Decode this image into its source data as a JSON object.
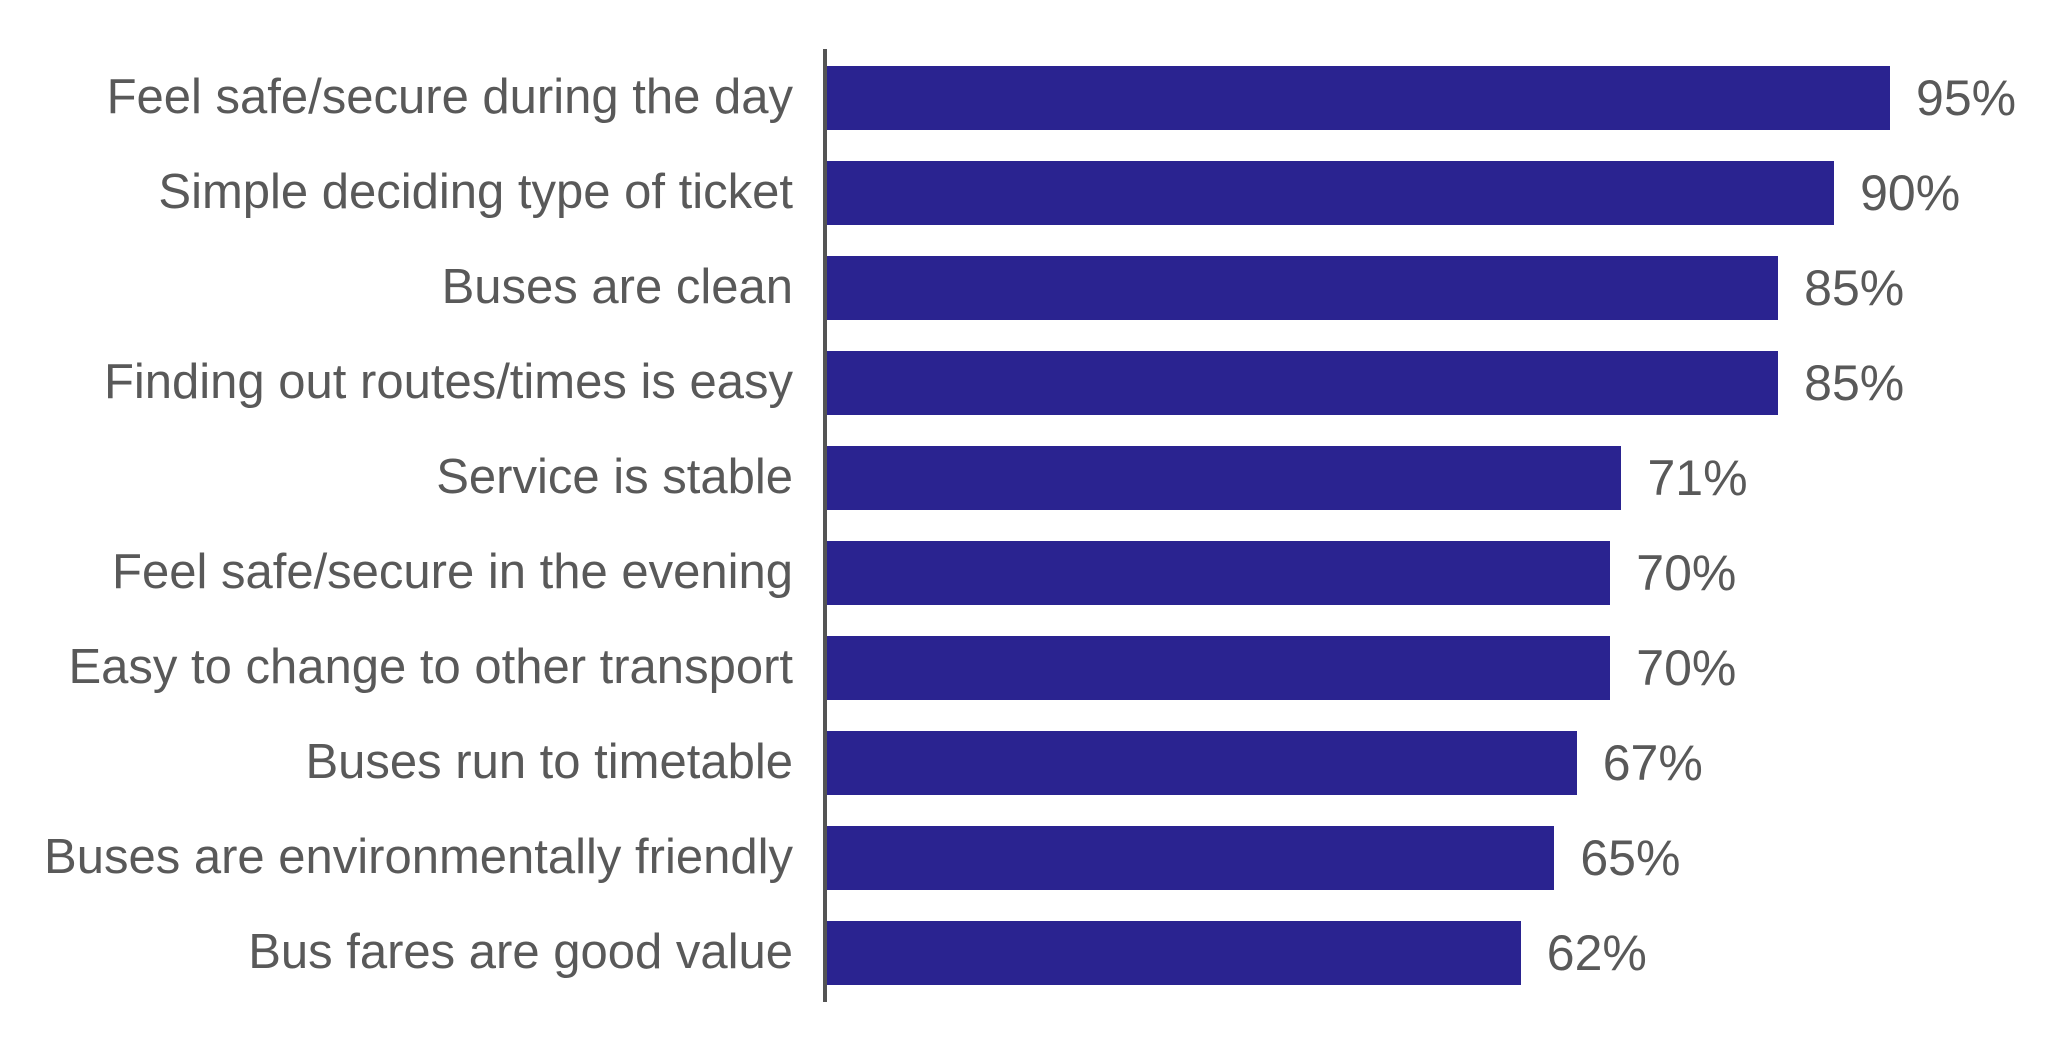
{
  "chart_data": {
    "type": "bar",
    "orientation": "horizontal",
    "title": "",
    "xlabel": "",
    "ylabel": "",
    "xlim": [
      0,
      100
    ],
    "grid": false,
    "legend": false,
    "categories": [
      "Feel safe/secure during the day",
      "Simple deciding type of ticket",
      "Buses are clean",
      "Finding out routes/times is easy",
      "Service is stable",
      "Feel safe/secure in the evening",
      "Easy to change to other transport",
      "Buses run to timetable",
      "Buses are environmentally friendly",
      "Bus fares are good value"
    ],
    "values": [
      95,
      90,
      85,
      85,
      71,
      70,
      70,
      67,
      65,
      62
    ],
    "value_labels": [
      "95%",
      "90%",
      "85%",
      "85%",
      "71%",
      "70%",
      "70%",
      "67%",
      "65%",
      "62%"
    ],
    "colors": {
      "bar": "#2A2390",
      "text": "#595959",
      "axis": "#545454",
      "background": "#ffffff"
    }
  }
}
